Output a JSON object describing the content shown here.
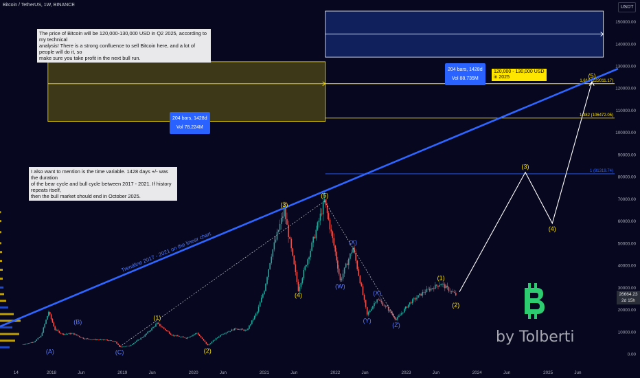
{
  "header": {
    "title": "Bitcoin / TetherUS, 1W, BINANCE",
    "unit": "USDT"
  },
  "price_axis": {
    "ticks": [
      {
        "v": 150000,
        "label": "150000.00"
      },
      {
        "v": 140000,
        "label": "140000.00"
      },
      {
        "v": 130000,
        "label": "130000.00"
      },
      {
        "v": 120000,
        "label": "120000.00"
      },
      {
        "v": 110000,
        "label": "110000.00"
      },
      {
        "v": 100000,
        "label": "100000.00"
      },
      {
        "v": 90000,
        "label": "90000.00"
      },
      {
        "v": 80000,
        "label": "80000.00"
      },
      {
        "v": 70000,
        "label": "70000.00"
      },
      {
        "v": 60000,
        "label": "60000.00"
      },
      {
        "v": 50000,
        "label": "50000.00"
      },
      {
        "v": 40000,
        "label": "40000.00"
      },
      {
        "v": 30000,
        "label": "30000.00"
      },
      {
        "v": 20000,
        "label": "20000.00"
      },
      {
        "v": 10000,
        "label": "10000.00"
      },
      {
        "v": 0,
        "label": "0.00"
      }
    ],
    "last_price": "26664.23",
    "countdown": "2d 15h"
  },
  "time_axis": {
    "ticks": [
      {
        "t": 2017.5,
        "label": "14"
      },
      {
        "t": 2018.0,
        "label": "2018"
      },
      {
        "t": 2018.42,
        "label": "Jun"
      },
      {
        "t": 2019.0,
        "label": "2019"
      },
      {
        "t": 2019.42,
        "label": "Jun"
      },
      {
        "t": 2020.0,
        "label": "2020"
      },
      {
        "t": 2020.42,
        "label": "Jun"
      },
      {
        "t": 2021.0,
        "label": "2021"
      },
      {
        "t": 2021.42,
        "label": "Jun"
      },
      {
        "t": 2022.0,
        "label": "2022"
      },
      {
        "t": 2022.42,
        "label": "Jun"
      },
      {
        "t": 2023.0,
        "label": "2023"
      },
      {
        "t": 2023.42,
        "label": "Jun"
      },
      {
        "t": 2024.0,
        "label": "2024"
      },
      {
        "t": 2024.42,
        "label": "Jun"
      },
      {
        "t": 2025.0,
        "label": "2025"
      },
      {
        "t": 2025.42,
        "label": "Jun"
      }
    ]
  },
  "notes": {
    "top": "The price of Bitcoin will be 120,000-130,000 USD in Q2 2025, according to my technical\nanalysis! There is a strong confluence to sell Bitcoin here, and a lot of people will do it, so\nmake sure you take profit in the next bull run.",
    "middle": "I also want to mention is the time variable. 1428 days +/- was the duration\nof the bear cycle and bull cycle between 2017 - 2021. If history repeats itself,\nthen the bull market should end in October 2025."
  },
  "ranges": {
    "past": {
      "bars": "204 bars, 1428d",
      "vol": "Vol 78.224M",
      "color": "#ffe600"
    },
    "future": {
      "bars": "204 bars, 1428d",
      "vol": "Vol 88.735M",
      "color": "#2962ff"
    }
  },
  "target": "120,000 - 130,000 USD\nin 2025",
  "fib_levels": [
    {
      "label": "1.618 (122011.17)",
      "v": 122011.17,
      "color": "#ffe600"
    },
    {
      "label": "1.382 (106472.05)",
      "v": 106472.05,
      "color": "#ffe600"
    },
    {
      "label": "1 (81319.74)",
      "v": 81319.74,
      "color": "#2962ff"
    }
  ],
  "trendline": {
    "label": "Trendline 2017 - 2021 on the linear chart",
    "color": "#2f66ff"
  },
  "wave_labels": [
    {
      "text": "(A)",
      "t": 2017.98,
      "v": 3500,
      "color": "#5b7bff",
      "pos": "below"
    },
    {
      "text": "(B)",
      "t": 2018.37,
      "v": 12000,
      "color": "#5b7bff",
      "pos": "above"
    },
    {
      "text": "(C)",
      "t": 2018.96,
      "v": 3200,
      "color": "#5b7bff",
      "pos": "below"
    },
    {
      "text": "(1)",
      "t": 2019.49,
      "v": 13800,
      "color": "#ffe600",
      "pos": "above"
    },
    {
      "text": "(2)",
      "t": 2020.2,
      "v": 3900,
      "color": "#ffe600",
      "pos": "below"
    },
    {
      "text": "(3)",
      "t": 2021.28,
      "v": 64800,
      "color": "#ffe600",
      "pos": "above"
    },
    {
      "text": "(4)",
      "t": 2021.48,
      "v": 29000,
      "color": "#ffe600",
      "pos": "below"
    },
    {
      "text": "(5)",
      "t": 2021.85,
      "v": 69000,
      "color": "#ffe600",
      "pos": "above"
    },
    {
      "text": "(W)",
      "t": 2022.07,
      "v": 33000,
      "color": "#5b7bff",
      "pos": "below"
    },
    {
      "text": "(X)",
      "t": 2022.25,
      "v": 48000,
      "color": "#5b7bff",
      "pos": "above"
    },
    {
      "text": "(Y)",
      "t": 2022.45,
      "v": 17600,
      "color": "#5b7bff",
      "pos": "below"
    },
    {
      "text": "(X)",
      "t": 2022.59,
      "v": 25000,
      "color": "#5b7bff",
      "pos": "above"
    },
    {
      "text": "(Z)",
      "t": 2022.86,
      "v": 15500,
      "color": "#5b7bff",
      "pos": "below"
    },
    {
      "text": "(1)",
      "t": 2023.49,
      "v": 31800,
      "color": "#ffe600",
      "pos": "above"
    },
    {
      "text": "(2)",
      "t": 2023.7,
      "v": 24500,
      "color": "#ffe600",
      "pos": "below"
    },
    {
      "text": "(3)",
      "t": 2024.68,
      "v": 82000,
      "color": "#ffe600",
      "pos": "above"
    },
    {
      "text": "(4)",
      "t": 2025.06,
      "v": 59000,
      "color": "#ffe600",
      "pos": "below"
    },
    {
      "text": "(5)",
      "t": 2025.62,
      "v": 123000,
      "color": "#ffe600",
      "pos": "above"
    }
  ],
  "brand": "by Tolberti",
  "chart_data": {
    "type": "line",
    "title": "Bitcoin / TetherUS, 1W, BINANCE",
    "xlabel": "",
    "ylabel": "",
    "ylim": [
      -5000,
      155000
    ],
    "grid": false,
    "series": [
      {
        "name": "Bitcoin / TetherUS",
        "x": [
          2017.6,
          2017.75,
          2017.85,
          2017.96,
          2018.05,
          2018.15,
          2018.3,
          2018.45,
          2018.6,
          2018.75,
          2018.9,
          2018.96,
          2019.1,
          2019.3,
          2019.49,
          2019.7,
          2019.9,
          2020.05,
          2020.2,
          2020.4,
          2020.6,
          2020.75,
          2020.9,
          2021.0,
          2021.1,
          2021.28,
          2021.48,
          2021.65,
          2021.85,
          2022.0,
          2022.07,
          2022.25,
          2022.45,
          2022.59,
          2022.75,
          2022.86,
          2023.05,
          2023.25,
          2023.49,
          2023.6,
          2023.7
        ],
        "values": [
          4300,
          5500,
          8000,
          19000,
          11000,
          9000,
          9200,
          7000,
          6500,
          6400,
          5500,
          3200,
          3700,
          8000,
          13800,
          8500,
          7200,
          9500,
          3900,
          9000,
          11500,
          10500,
          19000,
          29000,
          45000,
          64800,
          29000,
          47000,
          69000,
          46000,
          33000,
          48000,
          17600,
          25000,
          20000,
          15500,
          23000,
          28000,
          31800,
          29000,
          26664
        ]
      },
      {
        "name": "Projection",
        "x": [
          2023.75,
          2024.68,
          2025.06,
          2025.62
        ],
        "values": [
          28000,
          82000,
          59000,
          123000
        ]
      }
    ],
    "annotations": [
      "Trendline 2017 - 2021 on the linear chart",
      "1.618 (122011.17)",
      "1.382 (106472.05)",
      "1 (81319.74)",
      "120,000 - 130,000 USD in 2025"
    ]
  }
}
